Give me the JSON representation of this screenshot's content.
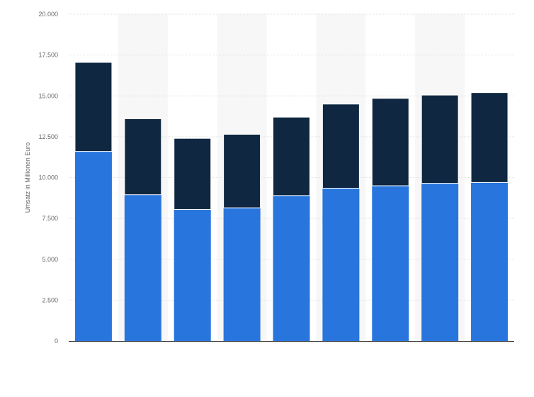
{
  "chart_data": {
    "type": "bar",
    "stacked": true,
    "title": "",
    "xlabel": "",
    "ylabel": "Umsatz in Millionen Euro",
    "ylim": [
      0,
      20000
    ],
    "yticks": [
      0,
      2500,
      5000,
      7500,
      10000,
      12500,
      15000,
      17500,
      20000
    ],
    "ytick_labels": [
      "0",
      "2.500",
      "5.000",
      "7.500",
      "10.000",
      "12.500",
      "15.000",
      "17.500",
      "20.000"
    ],
    "categories": [
      "",
      "",
      "",
      "",
      "",
      "",
      "",
      "",
      ""
    ],
    "grid": true,
    "series": [
      {
        "color": "#2876dd",
        "values": [
          11600,
          8950,
          8050,
          8150,
          8900,
          9350,
          9500,
          9650,
          9700
        ]
      },
      {
        "color": "#0f2740",
        "values": [
          5450,
          4650,
          4350,
          4500,
          4800,
          5150,
          5350,
          5400,
          5500
        ]
      }
    ]
  }
}
